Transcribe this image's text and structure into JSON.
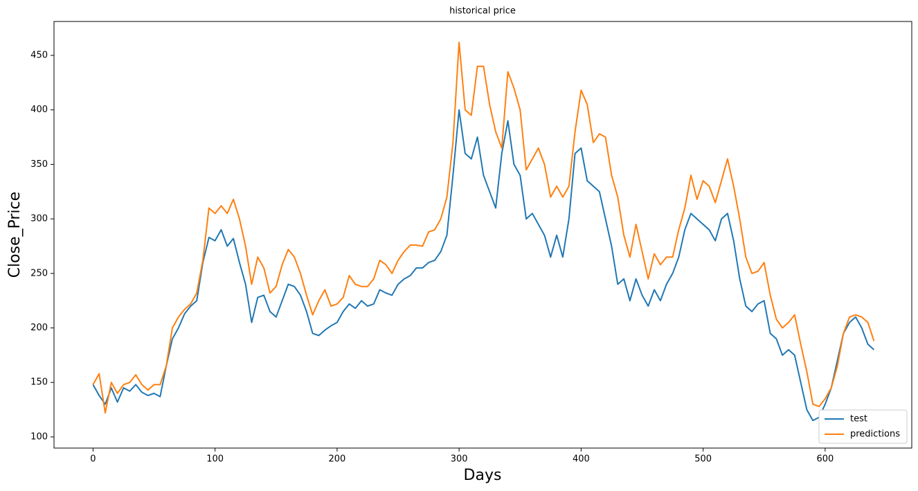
{
  "chart_data": {
    "type": "line",
    "title": "historical price",
    "x_label": "Days",
    "y_label": "Close_Price",
    "x": [
      0,
      5,
      10,
      15,
      20,
      25,
      30,
      35,
      40,
      45,
      50,
      55,
      60,
      65,
      70,
      75,
      80,
      85,
      90,
      95,
      100,
      105,
      110,
      115,
      120,
      125,
      130,
      135,
      140,
      145,
      150,
      155,
      160,
      165,
      170,
      175,
      180,
      185,
      190,
      195,
      200,
      205,
      210,
      215,
      220,
      225,
      230,
      235,
      240,
      245,
      250,
      255,
      260,
      265,
      270,
      275,
      280,
      285,
      290,
      295,
      300,
      305,
      310,
      315,
      320,
      325,
      330,
      335,
      340,
      345,
      350,
      355,
      360,
      365,
      370,
      375,
      380,
      385,
      390,
      395,
      400,
      405,
      410,
      415,
      420,
      425,
      430,
      435,
      440,
      445,
      450,
      455,
      460,
      465,
      470,
      475,
      480,
      485,
      490,
      495,
      500,
      505,
      510,
      515,
      520,
      525,
      530,
      535,
      540,
      545,
      550,
      555,
      560,
      565,
      570,
      575,
      580,
      585,
      590,
      595,
      600,
      605,
      610,
      615,
      620,
      625,
      630,
      635,
      640
    ],
    "series": [
      {
        "name": "test",
        "color": "#1f77b4",
        "values": [
          148,
          138,
          130,
          145,
          132,
          145,
          142,
          148,
          141,
          138,
          140,
          137,
          165,
          190,
          200,
          213,
          220,
          225,
          260,
          283,
          280,
          290,
          275,
          282,
          260,
          240,
          205,
          228,
          230,
          215,
          210,
          225,
          240,
          238,
          230,
          215,
          195,
          193,
          198,
          202,
          205,
          215,
          222,
          218,
          225,
          220,
          222,
          235,
          232,
          230,
          240,
          245,
          248,
          255,
          255,
          260,
          262,
          270,
          285,
          340,
          400,
          360,
          355,
          375,
          340,
          325,
          310,
          360,
          390,
          350,
          340,
          300,
          305,
          295,
          285,
          265,
          285,
          265,
          300,
          360,
          365,
          335,
          330,
          325,
          300,
          275,
          240,
          245,
          225,
          245,
          230,
          220,
          235,
          225,
          240,
          250,
          265,
          290,
          305,
          300,
          295,
          290,
          280,
          300,
          305,
          280,
          245,
          220,
          215,
          222,
          225,
          195,
          190,
          175,
          180,
          175,
          150,
          125,
          115,
          118,
          130,
          145,
          170,
          195,
          205,
          210,
          200,
          185,
          180
        ]
      },
      {
        "name": "predictions",
        "color": "#ff7f0e",
        "values": [
          148,
          158,
          122,
          150,
          140,
          148,
          150,
          157,
          148,
          143,
          148,
          148,
          165,
          200,
          210,
          217,
          222,
          232,
          262,
          310,
          305,
          312,
          305,
          318,
          300,
          275,
          240,
          265,
          255,
          232,
          238,
          258,
          272,
          265,
          250,
          230,
          212,
          225,
          235,
          220,
          222,
          228,
          248,
          240,
          238,
          238,
          245,
          262,
          258,
          250,
          262,
          270,
          276,
          276,
          275,
          288,
          290,
          300,
          320,
          370,
          462,
          400,
          395,
          440,
          440,
          405,
          380,
          365,
          435,
          420,
          400,
          345,
          355,
          365,
          350,
          320,
          330,
          320,
          330,
          380,
          418,
          405,
          370,
          378,
          375,
          340,
          320,
          285,
          265,
          295,
          270,
          245,
          268,
          258,
          265,
          265,
          290,
          310,
          340,
          318,
          335,
          330,
          315,
          335,
          355,
          330,
          300,
          265,
          250,
          252,
          260,
          230,
          208,
          200,
          205,
          212,
          185,
          160,
          130,
          128,
          135,
          145,
          165,
          195,
          210,
          212,
          210,
          205,
          188
        ]
      }
    ],
    "xlim": [
      -32,
      671
    ],
    "ylim": [
      89.8,
      481.1
    ],
    "xticks": [
      0,
      100,
      200,
      300,
      400,
      500,
      600
    ],
    "yticks": [
      100,
      150,
      200,
      250,
      300,
      350,
      400,
      450
    ],
    "grid": false,
    "legend": "lower right"
  }
}
